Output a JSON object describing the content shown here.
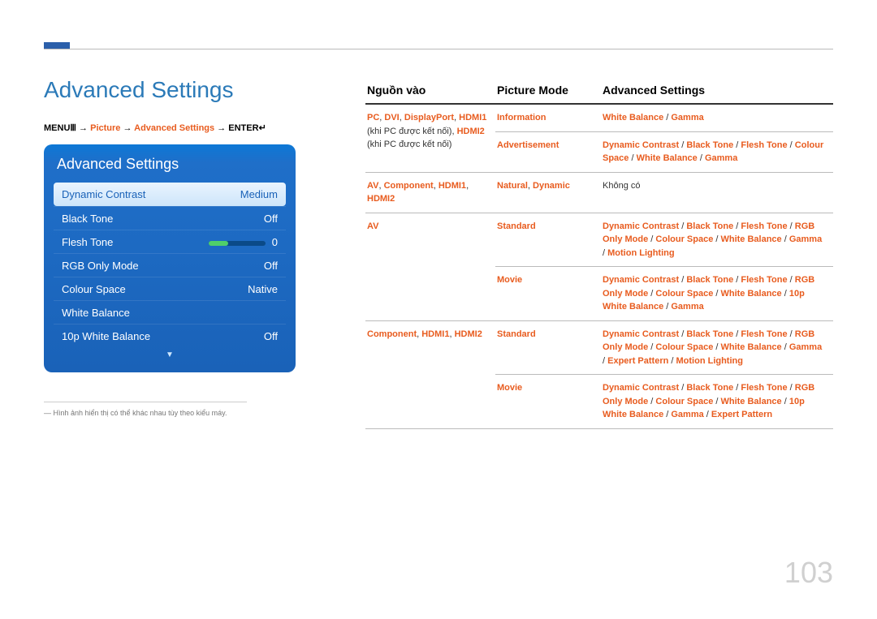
{
  "page_number": "103",
  "title": "Advanced Settings",
  "breadcrumb": {
    "p1": "MENU",
    "icon1": "Ⅲ",
    "arrow": " → ",
    "p2": "Picture",
    "p3": "Advanced Settings",
    "p4": "ENTER",
    "icon2": "↵"
  },
  "osd": {
    "title": "Advanced Settings",
    "rows": [
      {
        "label": "Dynamic Contrast",
        "value": "Medium",
        "selected": true
      },
      {
        "label": "Black Tone",
        "value": "Off"
      },
      {
        "label": "Flesh Tone",
        "value": "0",
        "slider": true
      },
      {
        "label": "RGB Only Mode",
        "value": "Off"
      },
      {
        "label": "Colour Space",
        "value": "Native"
      },
      {
        "label": "White Balance",
        "value": ""
      },
      {
        "label": "10p White Balance",
        "value": "Off"
      }
    ]
  },
  "footnote": "― Hình ảnh hiển thị có thể khác nhau tùy theo kiểu máy.",
  "table": {
    "headers": [
      "Nguồn vào",
      "Picture Mode",
      "Advanced Settings"
    ],
    "rows": [
      {
        "c1_html": "<span class='orange'>PC</span>, <span class='orange'>DVI</span>, <span class='orange'>DisplayPort</span>, <span class='orange'>HDMI1</span> (khi PC được kết nối), <span class='orange'>HDMI2</span> (khi PC được kết nối)",
        "c2_html": "<span class='orange'>Information</span>",
        "c3_html": "<span class='orange'>White Balance</span> / <span class='orange'>Gamma</span>",
        "c2b_html": "<span class='orange'>Advertisement</span>",
        "c3b_html": "<span class='orange'>Dynamic Contrast</span> / <span class='orange'>Black Tone</span> / <span class='orange'>Flesh Tone</span> / <span class='orange'>Colour Space</span> / <span class='orange'>White Balance</span> / <span class='orange'>Gamma</span>",
        "rowspan": 2
      },
      {
        "c1_html": "<span class='orange'>AV</span>, <span class='orange'>Component</span>, <span class='orange'>HDMI1</span>, <span class='orange'>HDMI2</span>",
        "c2_html": "<span class='orange'>Natural</span>, <span class='orange'>Dynamic</span>",
        "c3_html": "Không có"
      },
      {
        "c1_html": "<span class='orange'>AV</span>",
        "c2_html": "<span class='orange'>Standard</span>",
        "c3_html": "<span class='orange'>Dynamic Contrast</span> / <span class='orange'>Black Tone</span> / <span class='orange'>Flesh Tone</span> / <span class='orange'>RGB Only Mode</span> / <span class='orange'>Colour Space</span> / <span class='orange'>White Balance</span> / <span class='orange'>Gamma</span> / <span class='orange'>Motion Lighting</span>",
        "c2b_html": "<span class='orange'>Movie</span>",
        "c3b_html": "<span class='orange'>Dynamic Contrast</span> / <span class='orange'>Black Tone</span> / <span class='orange'>Flesh Tone</span> / <span class='orange'>RGB Only Mode</span> / <span class='orange'>Colour Space</span> / <span class='orange'>White Balance</span> / <span class='orange'>10p White Balance</span> / <span class='orange'>Gamma</span>",
        "rowspan": 2
      },
      {
        "c1_html": "<span class='orange'>Component</span>, <span class='orange'>HDMI1</span>, <span class='orange'>HDMI2</span>",
        "c2_html": "<span class='orange'>Standard</span>",
        "c3_html": "<span class='orange'>Dynamic Contrast</span> / <span class='orange'>Black Tone</span> / <span class='orange'>Flesh Tone</span> / <span class='orange'>RGB Only Mode</span> / <span class='orange'>Colour Space</span> / <span class='orange'>White Balance</span> / <span class='orange'>Gamma</span> / <span class='orange'>Expert Pattern</span> / <span class='orange'>Motion Lighting</span>",
        "c2b_html": "<span class='orange'>Movie</span>",
        "c3b_html": "<span class='orange'>Dynamic Contrast</span> / <span class='orange'>Black Tone</span> / <span class='orange'>Flesh Tone</span> / <span class='orange'>RGB Only Mode</span> / <span class='orange'>Colour Space</span> / <span class='orange'>White Balance</span> / <span class='orange'>10p White Balance</span> / <span class='orange'>Gamma</span> / <span class='orange'>Expert Pattern</span>",
        "rowspan": 2
      }
    ]
  }
}
